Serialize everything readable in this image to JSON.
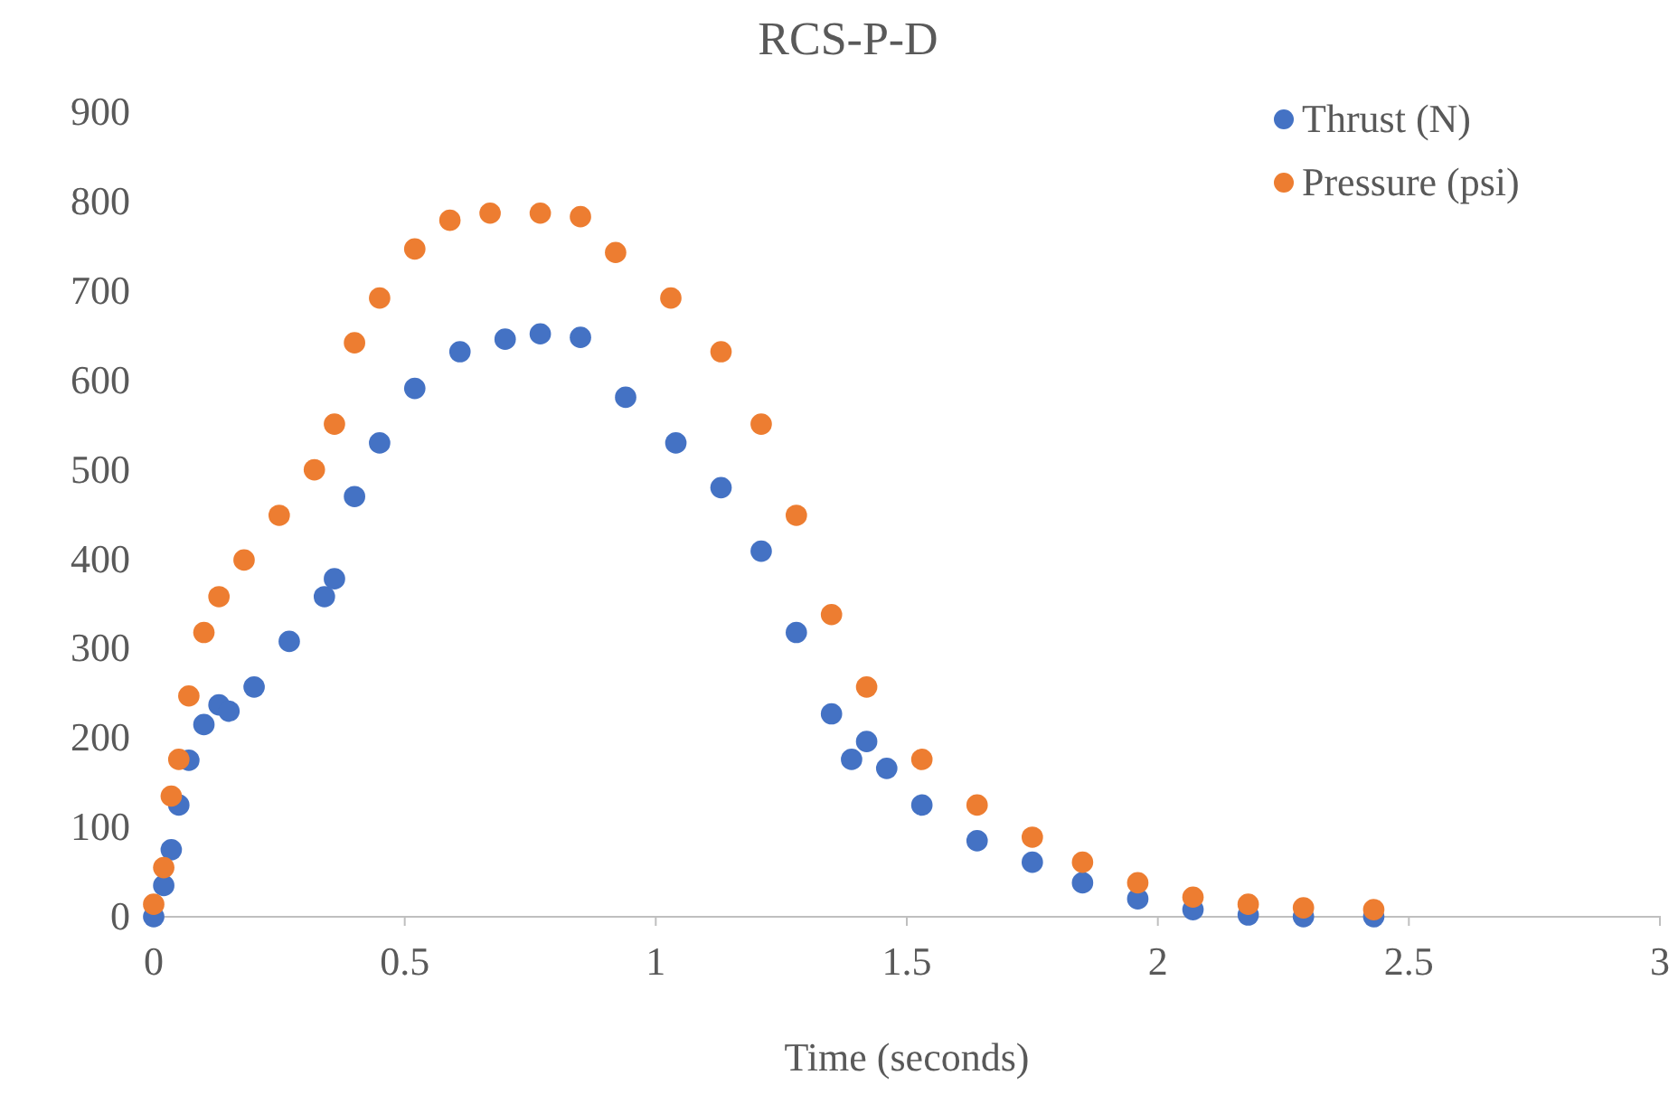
{
  "chart_data": {
    "type": "scatter",
    "title": "RCS-P-D",
    "xlabel": "Time (seconds)",
    "xlim": [
      0,
      3
    ],
    "xticks": [
      0,
      0.5,
      1,
      1.5,
      2,
      2.5,
      3
    ],
    "ylim": [
      0,
      900
    ],
    "yticks": [
      0,
      100,
      200,
      300,
      400,
      500,
      600,
      700,
      800,
      900
    ],
    "grid": false,
    "legend": "top right",
    "marker": "circle",
    "series": [
      {
        "name": "Thrust (N)",
        "color": "#4472c4",
        "x": [
          0,
          0.02,
          0.035,
          0.05,
          0.07,
          0.1,
          0.13,
          0.15,
          0.2,
          0.27,
          0.34,
          0.36,
          0.4,
          0.45,
          0.52,
          0.61,
          0.7,
          0.77,
          0.85,
          0.94,
          1.04,
          1.13,
          1.21,
          1.28,
          1.35,
          1.39,
          1.42,
          1.46,
          1.53,
          1.64,
          1.75,
          1.85,
          1.96,
          2.07,
          2.18,
          2.29,
          2.43
        ],
        "values": [
          0,
          35,
          75,
          125,
          175,
          215,
          237,
          230,
          257,
          308,
          358,
          378,
          470,
          530,
          591,
          632,
          646,
          652,
          648,
          581,
          530,
          480,
          409,
          318,
          227,
          176,
          196,
          166,
          125,
          85,
          61,
          38,
          20,
          8,
          2,
          0,
          0
        ]
      },
      {
        "name": "Pressure (psi)",
        "color": "#ed7d31",
        "x": [
          0,
          0.02,
          0.035,
          0.05,
          0.07,
          0.1,
          0.13,
          0.18,
          0.25,
          0.32,
          0.36,
          0.4,
          0.45,
          0.52,
          0.59,
          0.67,
          0.77,
          0.85,
          0.92,
          1.03,
          1.13,
          1.21,
          1.28,
          1.35,
          1.42,
          1.53,
          1.64,
          1.75,
          1.85,
          1.96,
          2.07,
          2.18,
          2.29,
          2.43
        ],
        "values": [
          14,
          55,
          135,
          176,
          247,
          318,
          358,
          399,
          449,
          500,
          551,
          642,
          692,
          747,
          779,
          787,
          787,
          783,
          743,
          692,
          632,
          551,
          449,
          338,
          257,
          176,
          125,
          89,
          61,
          38,
          22,
          14,
          10,
          8
        ]
      }
    ]
  }
}
